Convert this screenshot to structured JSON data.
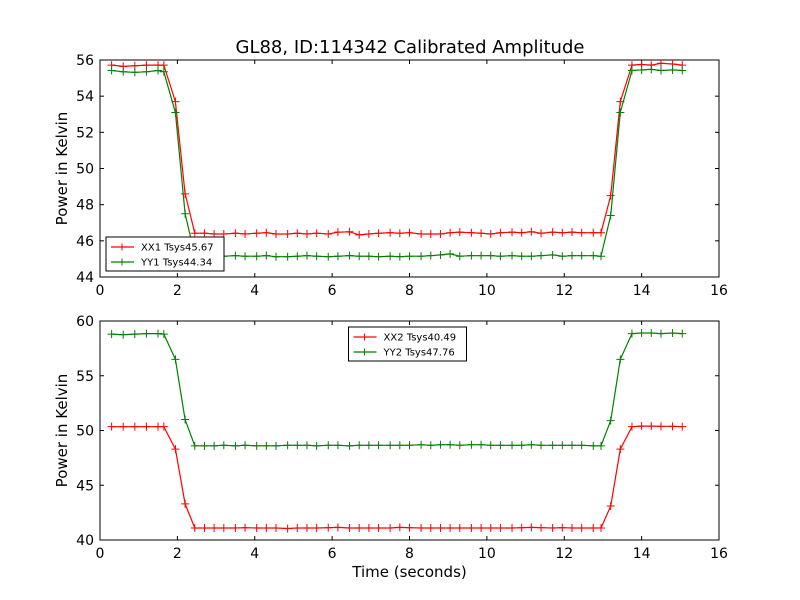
{
  "title": "GL88, ID:114342 Calibrated Amplitude",
  "chart_data": [
    {
      "type": "line",
      "title": "GL88, ID:114342 Calibrated Amplitude",
      "xlabel": "",
      "ylabel": "Power in Kelvin",
      "xlim": [
        0,
        16
      ],
      "ylim": [
        44,
        56
      ],
      "xticks": [
        "0",
        "2",
        "4",
        "6",
        "8",
        "10",
        "12",
        "14",
        "16"
      ],
      "yticks": [
        "44",
        "46",
        "48",
        "50",
        "52",
        "54",
        "56"
      ],
      "grid": false,
      "legend_position": "lower-left",
      "x": [
        0.3,
        0.6,
        0.9,
        1.2,
        1.5,
        1.65,
        1.95,
        2.2,
        2.45,
        2.7,
        2.95,
        3.2,
        3.5,
        3.75,
        4.05,
        4.3,
        4.55,
        4.85,
        5.1,
        5.35,
        5.6,
        5.9,
        6.15,
        6.45,
        6.7,
        6.95,
        7.2,
        7.5,
        7.75,
        8.0,
        8.3,
        8.55,
        8.8,
        9.05,
        9.3,
        9.6,
        9.85,
        10.1,
        10.35,
        10.65,
        10.9,
        11.15,
        11.4,
        11.7,
        11.95,
        12.2,
        12.45,
        12.75,
        12.95,
        13.2,
        13.45,
        13.75,
        14.0,
        14.25,
        14.5,
        14.8,
        15.05
      ],
      "series": [
        {
          "name": "XX1 Tsys45.67",
          "color": "#ff0000",
          "values": [
            55.72,
            55.65,
            55.68,
            55.72,
            55.72,
            55.72,
            53.7,
            48.6,
            46.42,
            46.42,
            46.38,
            46.38,
            46.42,
            46.38,
            46.42,
            46.45,
            46.38,
            46.38,
            46.42,
            46.38,
            46.42,
            46.38,
            46.48,
            46.5,
            46.33,
            46.38,
            46.42,
            46.45,
            46.42,
            46.45,
            46.38,
            46.38,
            46.38,
            46.45,
            46.48,
            46.45,
            46.42,
            46.38,
            46.45,
            46.48,
            46.45,
            46.5,
            46.42,
            46.48,
            46.45,
            46.48,
            46.45,
            46.45,
            46.45,
            48.5,
            53.7,
            55.72,
            55.75,
            55.72,
            55.82,
            55.78,
            55.72
          ]
        },
        {
          "name": "YY1 Tsys44.34",
          "color": "#008000",
          "values": [
            55.42,
            55.35,
            55.32,
            55.35,
            55.42,
            55.35,
            53.1,
            47.5,
            45.2,
            45.15,
            45.18,
            45.15,
            45.18,
            45.15,
            45.15,
            45.18,
            45.12,
            45.12,
            45.15,
            45.18,
            45.15,
            45.12,
            45.15,
            45.18,
            45.15,
            45.15,
            45.12,
            45.15,
            45.12,
            45.15,
            45.15,
            45.18,
            45.22,
            45.28,
            45.15,
            45.18,
            45.18,
            45.18,
            45.15,
            45.18,
            45.15,
            45.15,
            45.18,
            45.22,
            45.15,
            45.18,
            45.18,
            45.18,
            45.15,
            47.4,
            53.1,
            55.42,
            55.45,
            55.48,
            55.42,
            55.45,
            55.42
          ]
        }
      ]
    },
    {
      "type": "line",
      "title": "",
      "xlabel": "Time (seconds)",
      "ylabel": "Power in Kelvin",
      "xlim": [
        0,
        16
      ],
      "ylim": [
        40,
        60
      ],
      "xticks": [
        "0",
        "2",
        "4",
        "6",
        "8",
        "10",
        "12",
        "14",
        "16"
      ],
      "yticks": [
        "40",
        "45",
        "50",
        "55",
        "60"
      ],
      "grid": false,
      "legend_position": "upper-center",
      "x": [
        0.3,
        0.6,
        0.9,
        1.2,
        1.5,
        1.65,
        1.95,
        2.2,
        2.45,
        2.7,
        2.95,
        3.2,
        3.5,
        3.75,
        4.05,
        4.3,
        4.55,
        4.85,
        5.1,
        5.35,
        5.6,
        5.9,
        6.15,
        6.45,
        6.7,
        6.95,
        7.2,
        7.5,
        7.75,
        8.0,
        8.3,
        8.55,
        8.8,
        9.05,
        9.3,
        9.6,
        9.85,
        10.1,
        10.35,
        10.65,
        10.9,
        11.15,
        11.4,
        11.7,
        11.95,
        12.2,
        12.45,
        12.75,
        12.95,
        13.2,
        13.45,
        13.75,
        14.0,
        14.25,
        14.5,
        14.8,
        15.05
      ],
      "series": [
        {
          "name": "XX2 Tsys40.49",
          "color": "#ff0000",
          "values": [
            50.35,
            50.35,
            50.35,
            50.35,
            50.35,
            50.35,
            48.3,
            43.3,
            41.1,
            41.1,
            41.1,
            41.1,
            41.1,
            41.12,
            41.1,
            41.1,
            41.1,
            41.05,
            41.1,
            41.1,
            41.1,
            41.12,
            41.15,
            41.1,
            41.1,
            41.1,
            41.1,
            41.1,
            41.15,
            41.12,
            41.1,
            41.1,
            41.1,
            41.1,
            41.1,
            41.1,
            41.1,
            41.1,
            41.1,
            41.1,
            41.12,
            41.15,
            41.12,
            41.1,
            41.12,
            41.1,
            41.1,
            41.1,
            41.1,
            43.1,
            48.3,
            50.35,
            50.4,
            50.4,
            50.38,
            50.38,
            50.35
          ]
        },
        {
          "name": "YY2 Tsys47.76",
          "color": "#008000",
          "values": [
            58.8,
            58.75,
            58.8,
            58.85,
            58.85,
            58.8,
            56.5,
            51.0,
            48.6,
            48.6,
            48.6,
            48.65,
            48.6,
            48.65,
            48.6,
            48.6,
            48.6,
            48.65,
            48.65,
            48.65,
            48.6,
            48.65,
            48.65,
            48.6,
            48.65,
            48.65,
            48.65,
            48.65,
            48.65,
            48.65,
            48.7,
            48.65,
            48.7,
            48.7,
            48.65,
            48.7,
            48.7,
            48.65,
            48.65,
            48.65,
            48.65,
            48.7,
            48.65,
            48.65,
            48.65,
            48.65,
            48.65,
            48.6,
            48.6,
            50.9,
            56.5,
            58.85,
            58.9,
            58.9,
            58.85,
            58.9,
            58.85
          ]
        }
      ]
    }
  ]
}
